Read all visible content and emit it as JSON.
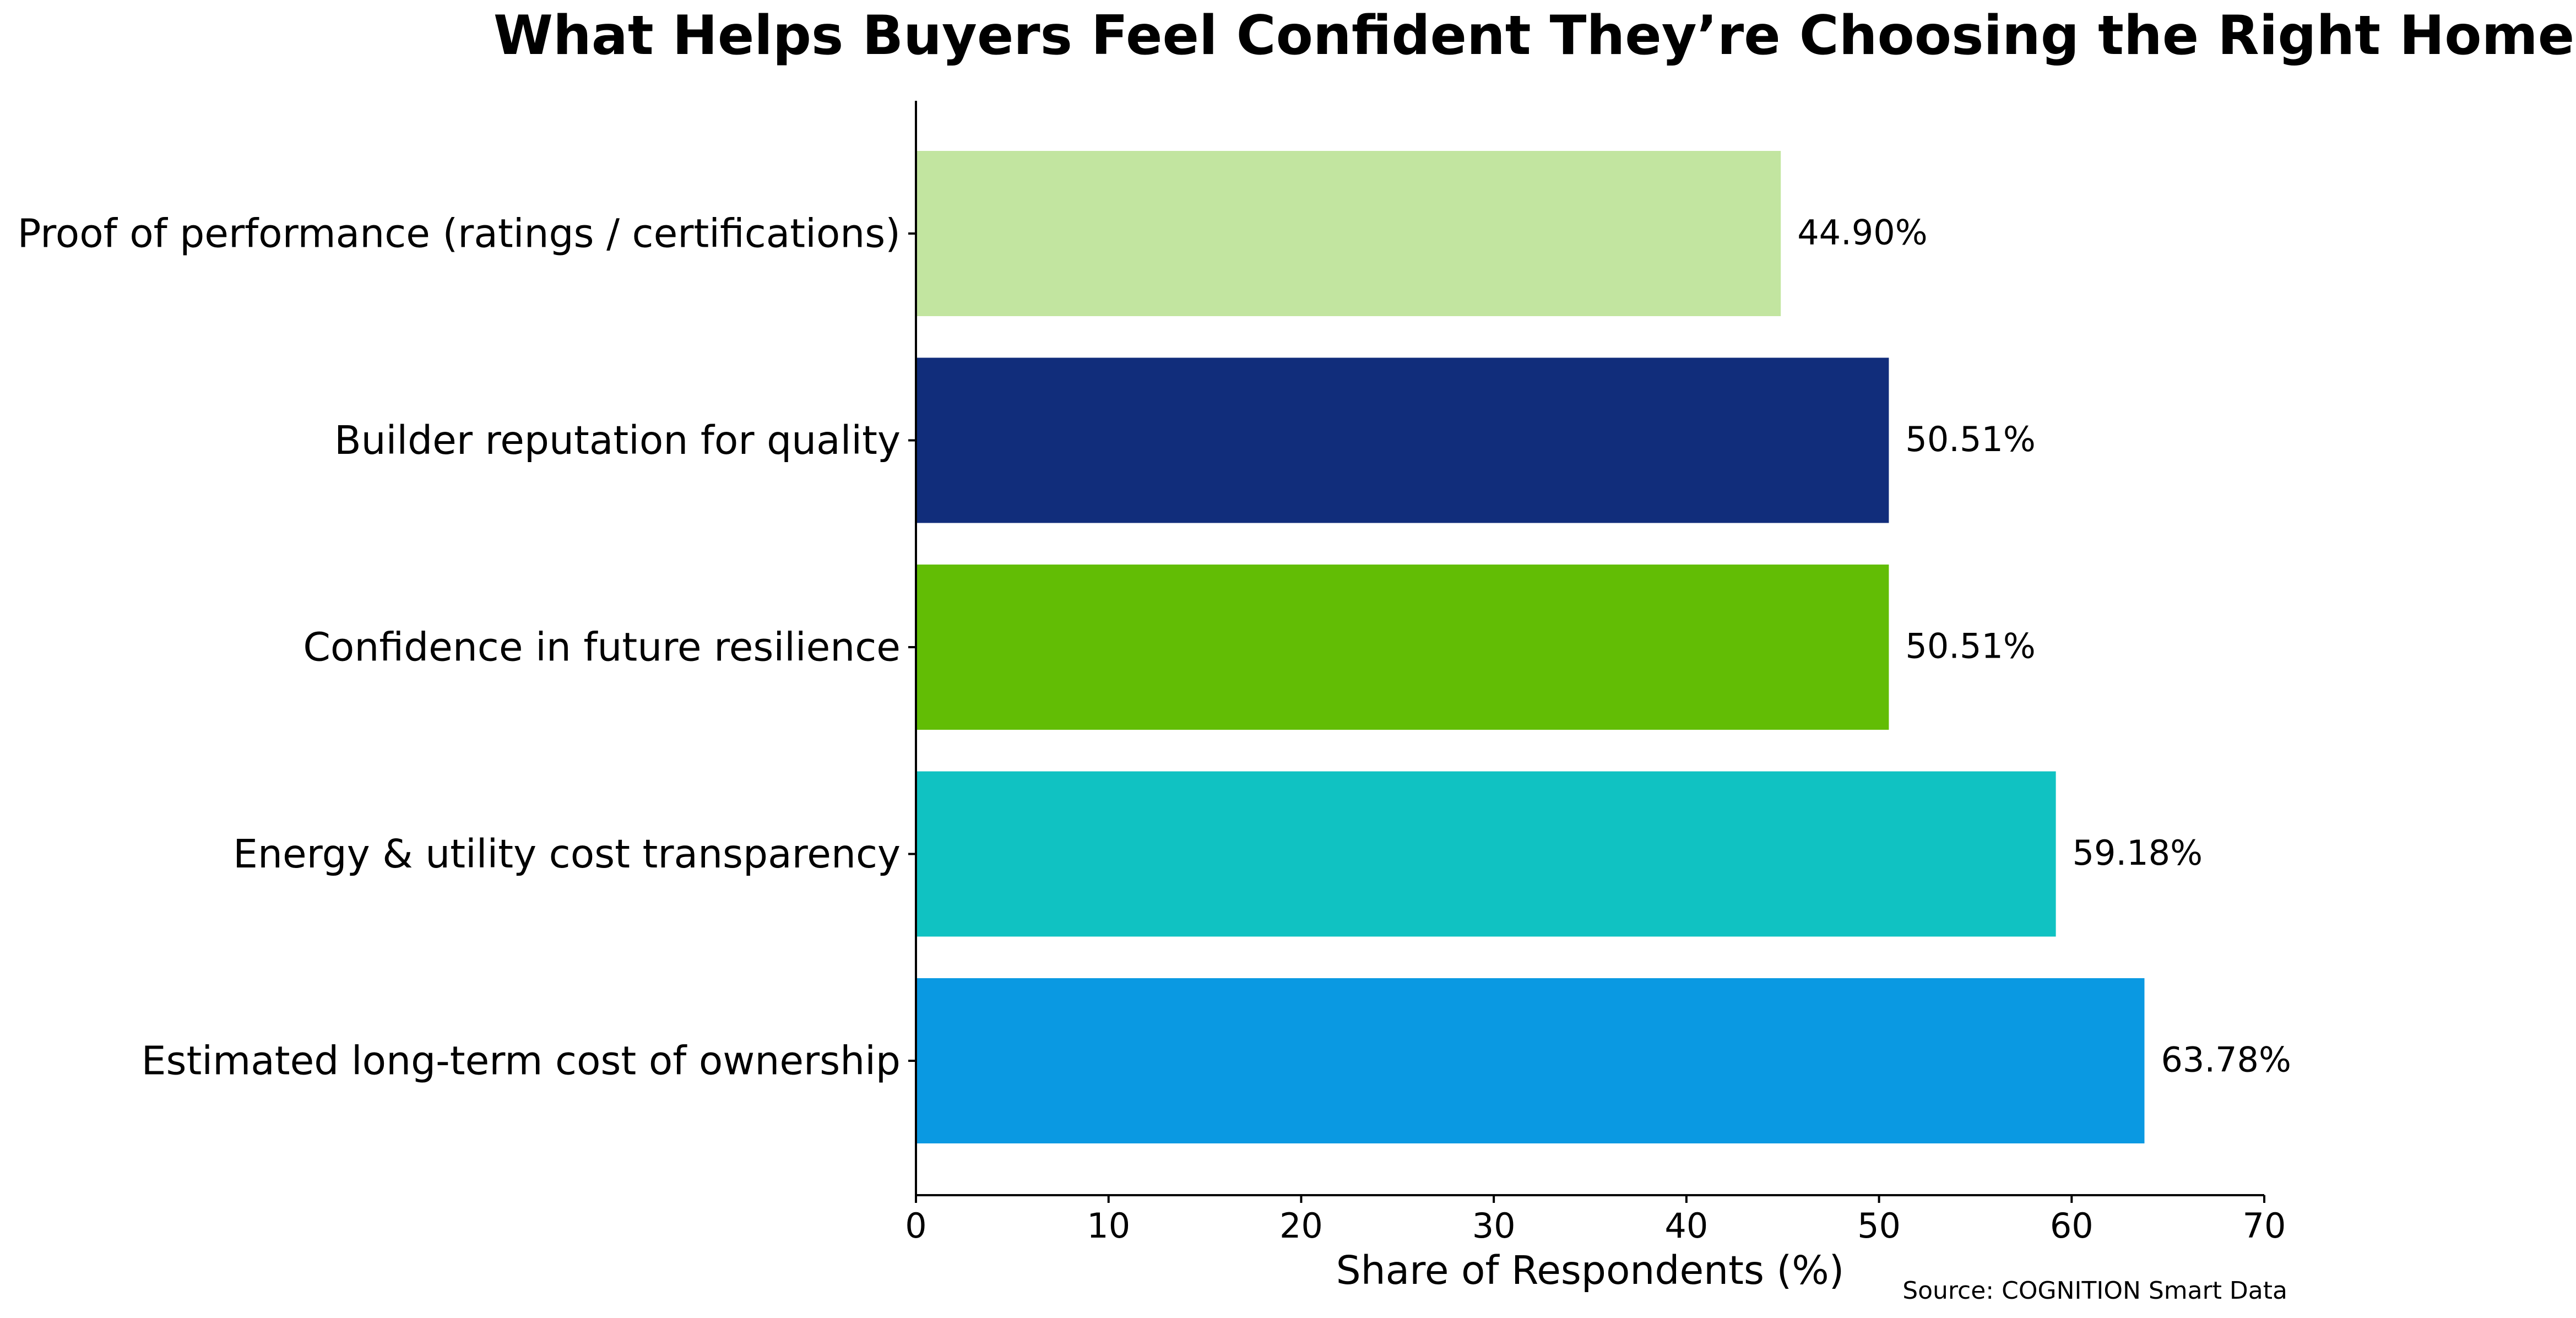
{
  "chart_data": {
    "type": "bar",
    "orientation": "horizontal",
    "title": "What Helps Buyers Feel Confident They’re Choosing the Right Home",
    "xlabel": "Share of Respondents (%)",
    "ylabel": "",
    "xlim": [
      0,
      70
    ],
    "xticks": [
      0,
      10,
      20,
      30,
      40,
      50,
      60,
      70
    ],
    "grid": false,
    "categories": [
      "Proof of performance (ratings / certifications)",
      "Builder reputation for quality",
      "Confidence in future resilience",
      "Energy & utility cost transparency",
      "Estimated long-term cost of ownership"
    ],
    "values": [
      44.9,
      50.51,
      50.51,
      59.18,
      63.78
    ],
    "value_labels": [
      "44.90%",
      "50.51%",
      "50.51%",
      "59.18%",
      "63.78%"
    ],
    "colors": [
      "#c2e5a0",
      "#112d7b",
      "#62bd05",
      "#10c2c2",
      "#0a99e2"
    ],
    "source": "Source: COGNITION Smart Data"
  }
}
